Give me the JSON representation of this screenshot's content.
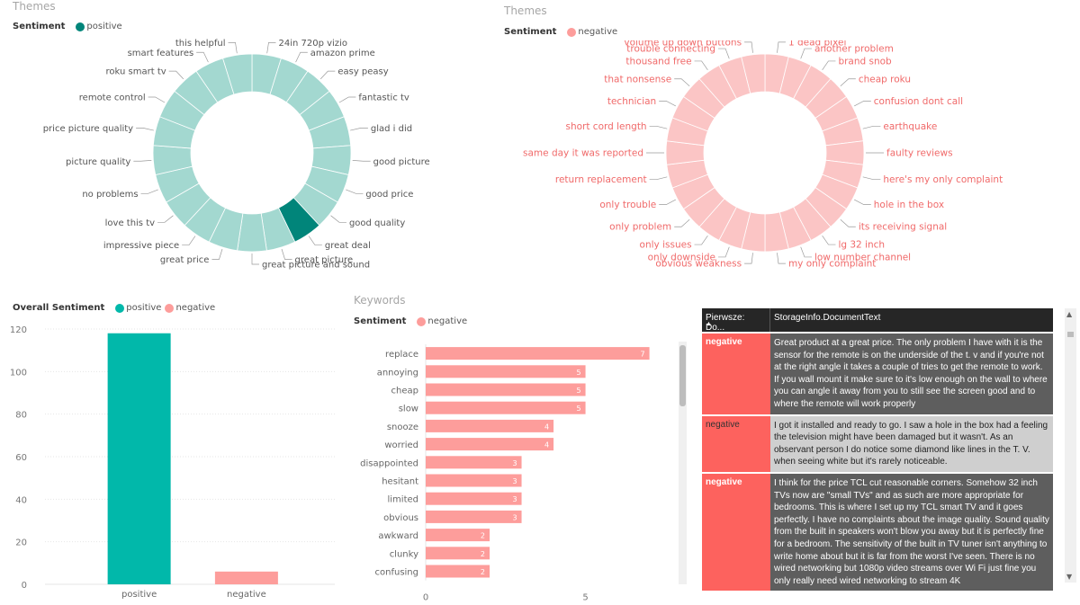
{
  "themes_positive": {
    "title": "Themes",
    "legend_title": "Sentiment",
    "legend_item": "positive",
    "color": "#a3d8d0",
    "highlight_color": "#01857a",
    "labels": [
      "24in 720p vizio",
      "amazon prime",
      "easy peasy",
      "fantastic tv",
      "glad i did",
      "good picture",
      "good price",
      "good quality",
      "great deal",
      "great picture",
      "great picture and sound",
      "great price",
      "impressive piece",
      "love this tv",
      "no problems",
      "picture quality",
      "price picture quality",
      "remote control",
      "roku smart tv",
      "smart features",
      "this helpful"
    ]
  },
  "themes_negative": {
    "title": "Themes",
    "legend_title": "Sentiment",
    "legend_item": "negative",
    "color": "#fbc5c5",
    "label_color": "#f06a6a",
    "labels": [
      "1 dead pixel",
      "another problem",
      "brand snob",
      "cheap roku",
      "confusion dont call",
      "earthquake",
      "faulty reviews",
      "here's my only complaint",
      "hole in the box",
      "its receiving signal",
      "lg 32 inch",
      "low number channel",
      "my only complaint",
      "obvious weakness",
      "only downside",
      "only issues",
      "only problem",
      "only trouble",
      "return replacement",
      "same day it was reported",
      "short cord length",
      "technician",
      "that nonsense",
      "thousand free",
      "trouble connecting",
      "volume up down buttons"
    ]
  },
  "overall": {
    "legend_title": "Overall Sentiment",
    "legend_items": [
      {
        "name": "positive",
        "color": "#01b8aa"
      },
      {
        "name": "negative",
        "color": "#fd9d9b"
      }
    ],
    "chart_data": {
      "type": "bar",
      "categories": [
        "positive",
        "negative"
      ],
      "values": [
        118,
        6
      ],
      "colors": [
        "#01b8aa",
        "#fd9d9b"
      ],
      "ylim": [
        0,
        120
      ],
      "yticks": [
        "0",
        "20",
        "40",
        "60",
        "80",
        "100",
        "120"
      ]
    }
  },
  "keywords": {
    "title": "Keywords",
    "legend_title": "Sentiment",
    "legend_item": "negative",
    "color": "#fd9d9b",
    "chart_data": {
      "type": "bar",
      "orientation": "horizontal",
      "categories": [
        "replace",
        "annoying",
        "cheap",
        "slow",
        "snooze",
        "worried",
        "disappointed",
        "hesitant",
        "limited",
        "obvious",
        "awkward",
        "clunky",
        "confusing"
      ],
      "values": [
        7,
        5,
        5,
        5,
        4,
        4,
        3,
        3,
        3,
        3,
        2,
        2,
        2
      ],
      "xlim": [
        0,
        7.8
      ],
      "xticks": [
        "0",
        "5"
      ]
    }
  },
  "table": {
    "columns": [
      "Pierwsze: Do...",
      "StorageInfo.DocumentText"
    ],
    "sort_arrow": "▲",
    "rows": [
      {
        "sentiment": "negative",
        "text": "Great product at a great price. The only problem I have with it is the sensor for the remote is on the underside of the t. v and if you're not at the right angle it takes a couple of tries to get the remote to work. If you wall mount it make sure to it's low enough on the wall to where you can angle it away from you to still see the screen good and to where the remote will work properly"
      },
      {
        "sentiment": "negative",
        "text": "I got it installed and ready to go. I saw a hole in the box had a feeling the television might have been damaged but it wasn't. As an observant person I do notice some diamond like lines in the T. V. when seeing white but it's rarely noticeable."
      },
      {
        "sentiment": "negative",
        "text": "I think for the price TCL cut reasonable corners. Somehow 32 inch TVs now are \"small TVs\" and as such are more appropriate for bedrooms. This is where I set up my TCL smart TV and it goes perfectly. I have no complaints about the image quality. Sound quality from the built in speakers won't blow you away but it is perfectly fine for a bedroom. The sensitivity of the built in TV tuner isn't anything to write home about but it is far from the worst I've seen. There is no wired networking but 1080p video streams over Wi Fi just fine you only really need wired networking to stream 4K"
      }
    ],
    "scroll_up": "▲",
    "scroll_down": "▼"
  }
}
